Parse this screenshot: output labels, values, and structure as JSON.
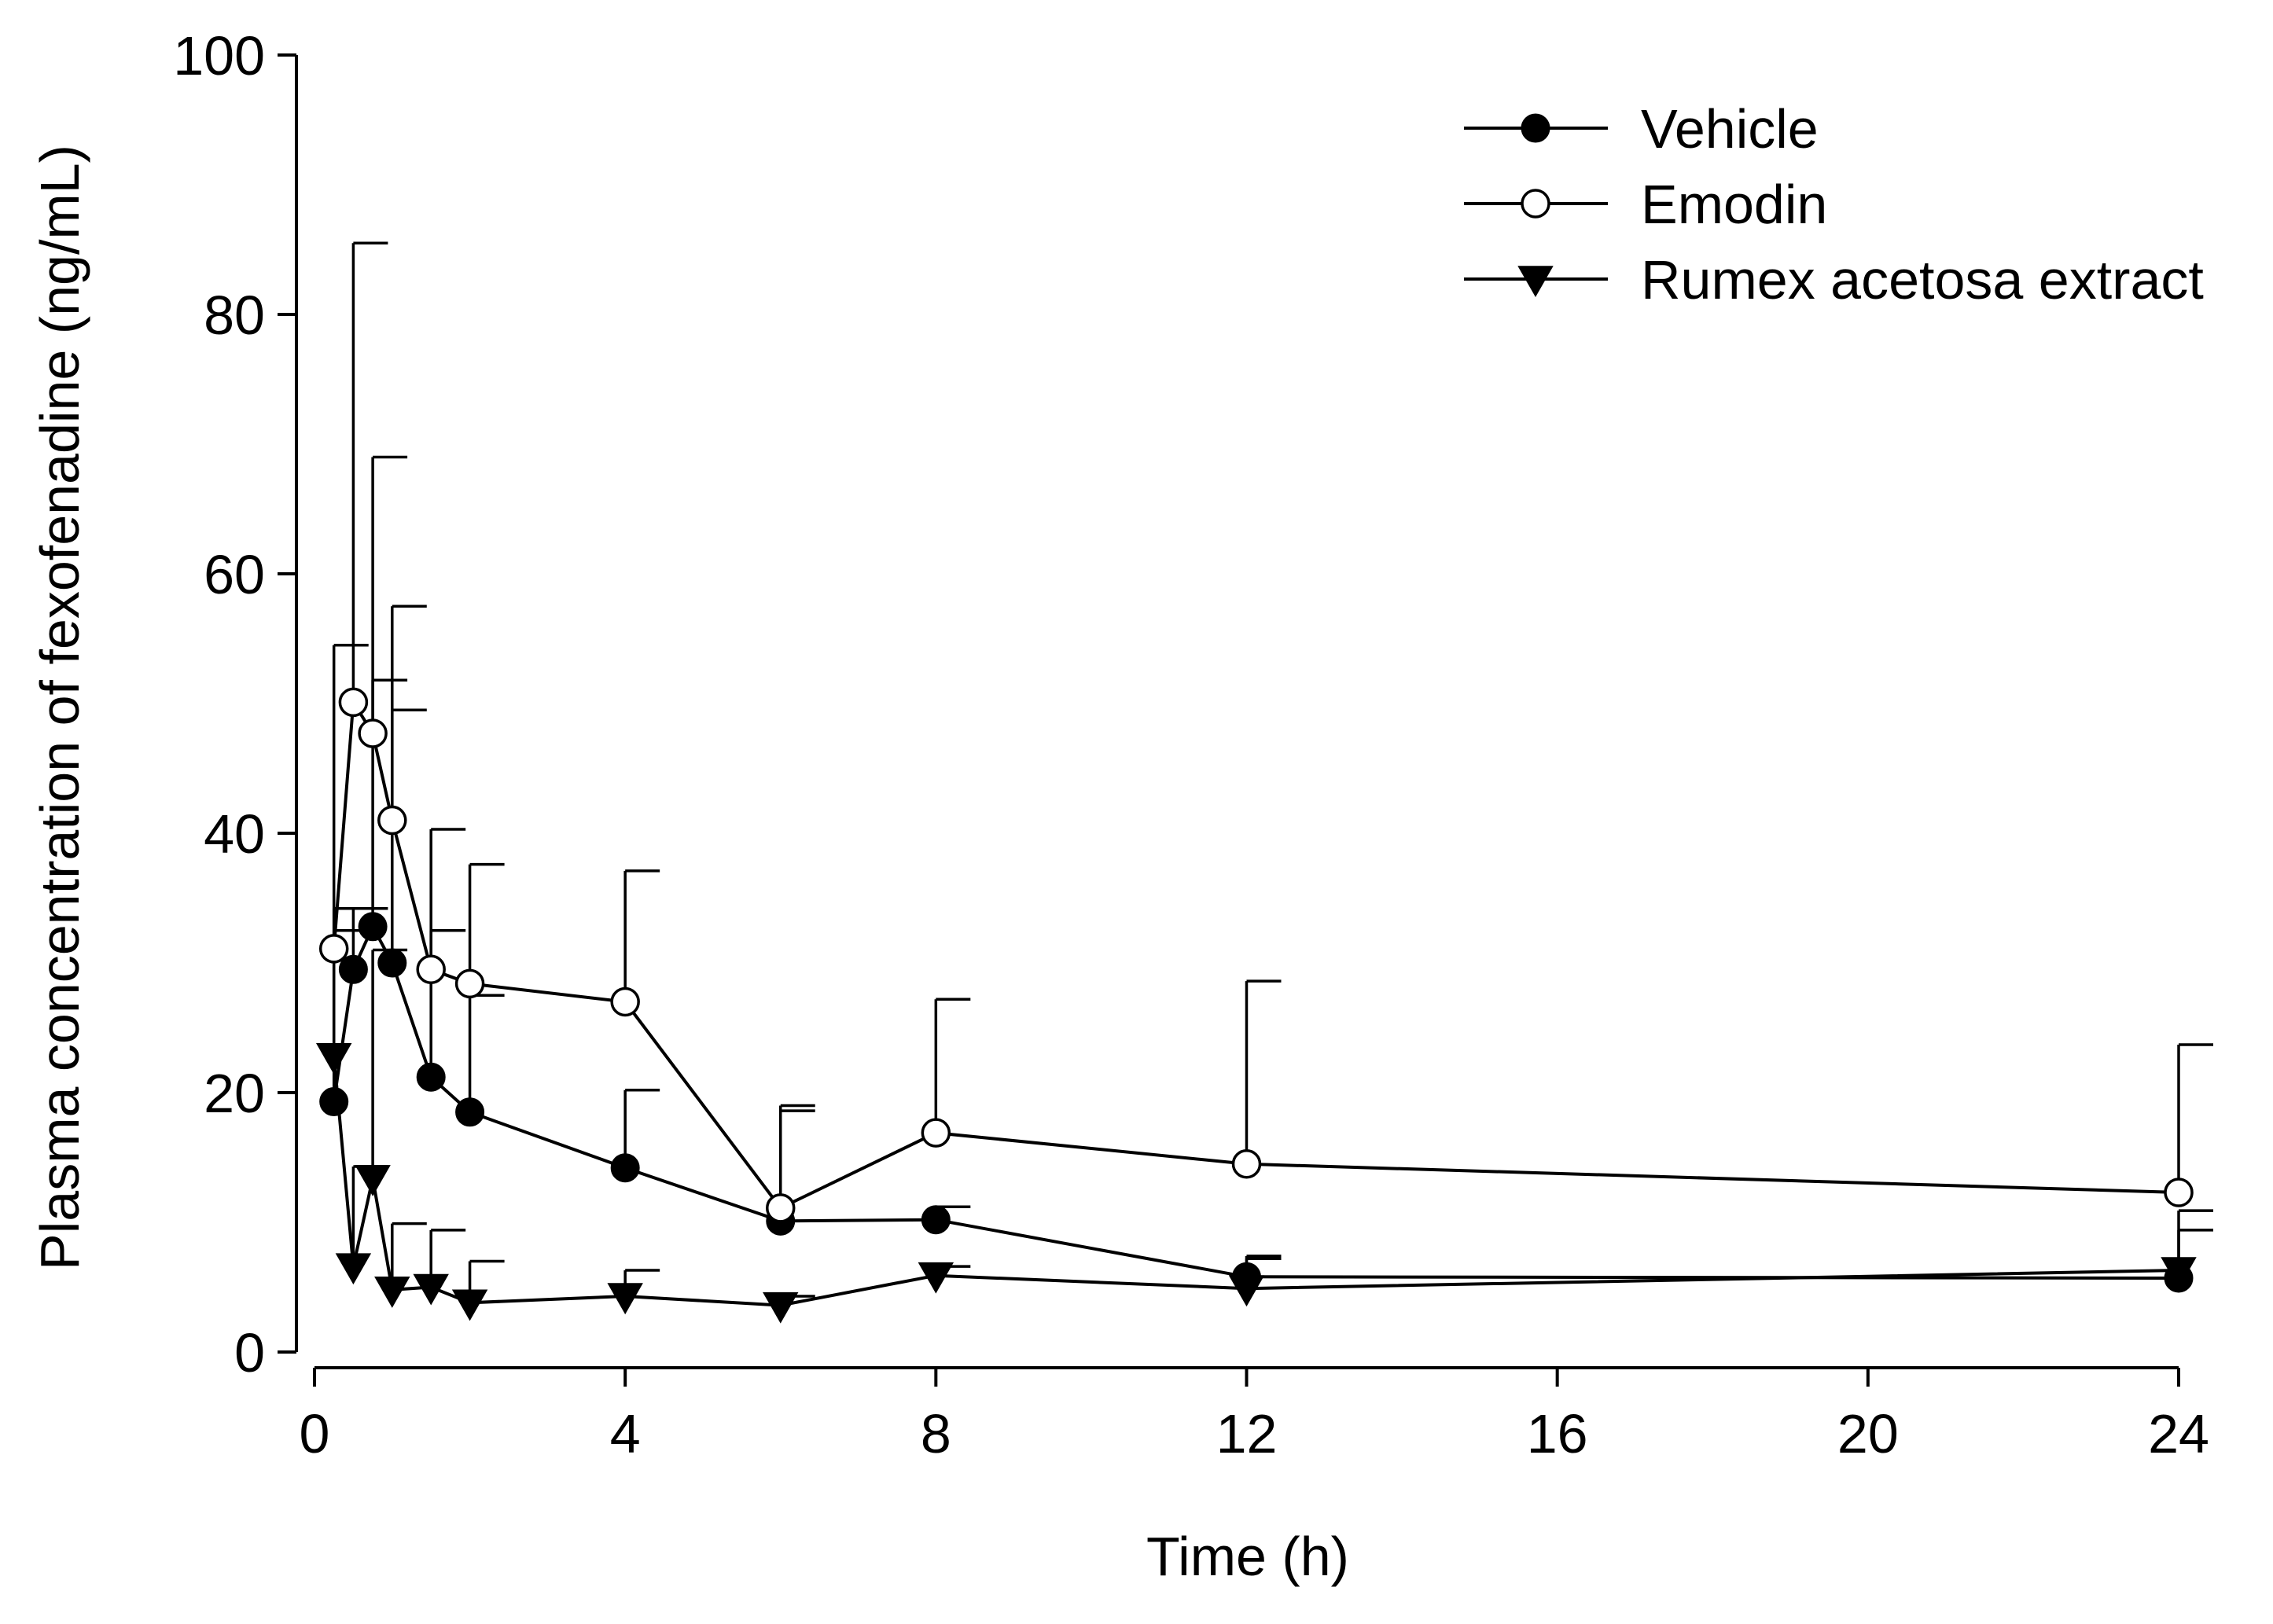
{
  "chart_data": {
    "type": "line",
    "title": "",
    "xlabel": "Time (h)",
    "ylabel": "Plasma concentration of fexofenadine (ng/mL)",
    "xlim": [
      0,
      24
    ],
    "ylim": [
      0,
      100
    ],
    "xticks": [
      0,
      4,
      8,
      12,
      16,
      20,
      24
    ],
    "yticks": [
      0,
      20,
      40,
      60,
      80,
      100
    ],
    "grid": false,
    "legend_position": "top-right",
    "x": [
      0.25,
      0.5,
      0.75,
      1,
      1.5,
      2,
      4,
      6,
      8,
      12,
      24
    ],
    "series": [
      {
        "name": "Vehicle",
        "marker": "filled-circle",
        "values": [
          19.3,
          29.5,
          32.8,
          30.0,
          21.2,
          18.5,
          14.2,
          10.1,
          10.2,
          5.8,
          5.7
        ],
        "error_upper": [
          34.2,
          34.2,
          51.8,
          49.5,
          32.5,
          27.5,
          20.2,
          18.6,
          11.2,
          7.4,
          9.4
        ]
      },
      {
        "name": "Emodin",
        "marker": "open-circle",
        "values": [
          31.1,
          50.1,
          47.7,
          41.0,
          29.5,
          28.4,
          27.0,
          11.1,
          16.9,
          14.5,
          12.3
        ],
        "error_upper": [
          54.5,
          85.5,
          69.0,
          57.5,
          40.3,
          37.6,
          37.1,
          19.0,
          27.2,
          28.6,
          23.7
        ]
      },
      {
        "name": "Rumex acetosa extract",
        "marker": "filled-triangle-down",
        "values": [
          22.8,
          6.6,
          13.4,
          4.8,
          5.0,
          3.8,
          4.3,
          3.6,
          5.9,
          4.9,
          6.3
        ],
        "error_upper": [
          32.5,
          14.3,
          31.0,
          9.9,
          9.4,
          7.0,
          6.3,
          4.3,
          6.6,
          7.2,
          10.9
        ]
      }
    ]
  }
}
